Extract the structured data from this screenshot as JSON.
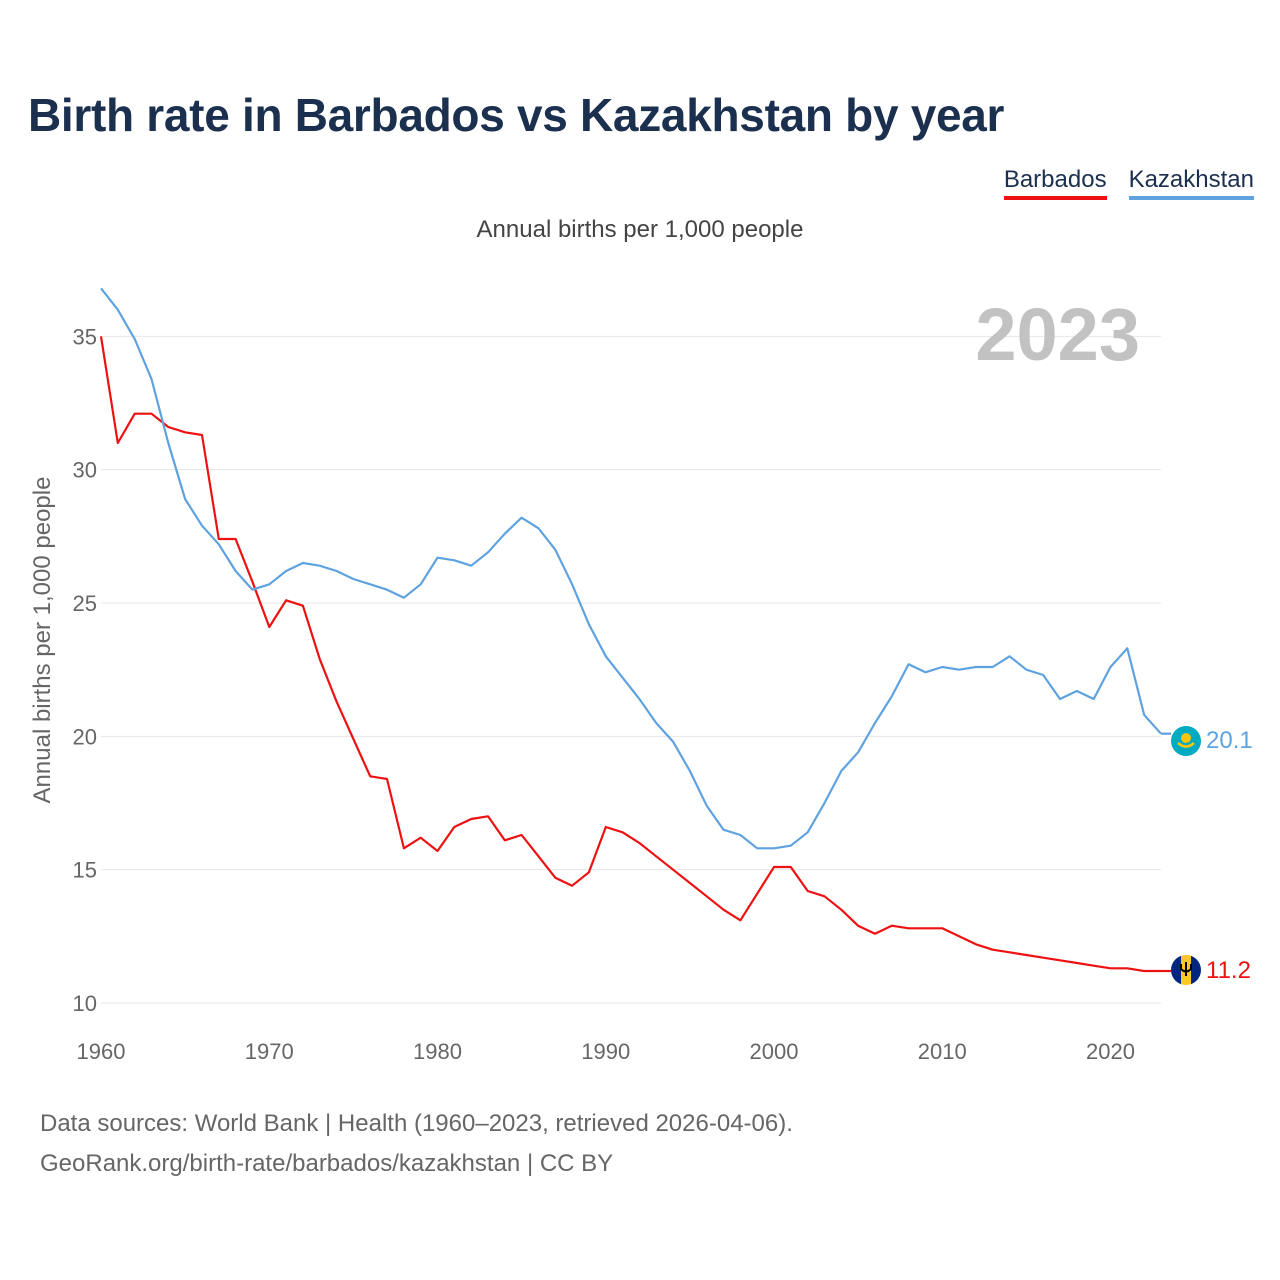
{
  "title": "Birth rate in Barbados vs Kazakhstan by year",
  "legend": {
    "barbados": "Barbados",
    "kazakhstan": "Kazakhstan"
  },
  "subtitle": "Annual births per 1,000 people",
  "footer": {
    "line1": "Data sources: World Bank | Health (1960–2023, retrieved 2026-04-06).",
    "line2": "GeoRank.org/birth-rate/barbados/kazakhstan | CC BY"
  },
  "colors": {
    "barbados": "#ee1111",
    "kazakhstan": "#5fa2e0",
    "grid": "#e6e6e6"
  },
  "chart_data": {
    "type": "line",
    "title": "Birth rate in Barbados vs Kazakhstan by year",
    "ylabel": "Annual births per 1,000 people",
    "xlabel": "",
    "year_label": "2023",
    "xlim": [
      1960,
      2023
    ],
    "ylim": [
      10,
      37
    ],
    "xticks": [
      1960,
      1970,
      1980,
      1990,
      2000,
      2010,
      2020
    ],
    "yticks": [
      10,
      15,
      20,
      25,
      30,
      35
    ],
    "grid": true,
    "legend": "top-right",
    "x": [
      1960,
      1961,
      1962,
      1963,
      1964,
      1965,
      1966,
      1967,
      1968,
      1969,
      1970,
      1971,
      1972,
      1973,
      1974,
      1975,
      1976,
      1977,
      1978,
      1979,
      1980,
      1981,
      1982,
      1983,
      1984,
      1985,
      1986,
      1987,
      1988,
      1989,
      1990,
      1991,
      1992,
      1993,
      1994,
      1995,
      1996,
      1997,
      1998,
      1999,
      2000,
      2001,
      2002,
      2003,
      2004,
      2005,
      2006,
      2007,
      2008,
      2009,
      2010,
      2011,
      2012,
      2013,
      2014,
      2015,
      2016,
      2017,
      2018,
      2019,
      2020,
      2021,
      2022,
      2023
    ],
    "series": [
      {
        "name": "Barbados",
        "end_label": "11.2",
        "values": [
          35.0,
          31.0,
          32.1,
          32.1,
          31.6,
          31.4,
          31.3,
          27.4,
          27.4,
          25.8,
          24.1,
          25.1,
          24.9,
          22.9,
          21.3,
          19.9,
          18.5,
          18.4,
          15.8,
          16.2,
          15.7,
          16.6,
          16.9,
          17.0,
          16.1,
          16.3,
          15.5,
          14.7,
          14.4,
          14.9,
          16.6,
          16.4,
          16.0,
          15.5,
          15.0,
          14.5,
          14.0,
          13.5,
          13.1,
          14.1,
          15.1,
          15.1,
          14.2,
          14.0,
          13.5,
          12.9,
          12.6,
          12.9,
          12.8,
          12.8,
          12.8,
          12.5,
          12.2,
          12.0,
          11.9,
          11.8,
          11.7,
          11.6,
          11.5,
          11.4,
          11.3,
          11.3,
          11.2,
          11.2
        ]
      },
      {
        "name": "Kazakhstan",
        "end_label": "20.1",
        "values": [
          36.8,
          36.0,
          34.9,
          33.4,
          31.0,
          28.9,
          27.9,
          27.2,
          26.2,
          25.5,
          25.7,
          26.2,
          26.5,
          26.4,
          26.2,
          25.9,
          25.7,
          25.5,
          25.2,
          25.7,
          26.7,
          26.6,
          26.4,
          26.9,
          27.6,
          28.2,
          27.8,
          27.0,
          25.7,
          24.2,
          23.0,
          22.2,
          21.4,
          20.5,
          19.8,
          18.7,
          17.4,
          16.5,
          16.3,
          15.8,
          15.8,
          15.9,
          16.4,
          17.5,
          18.7,
          19.4,
          20.5,
          21.5,
          22.7,
          22.4,
          22.6,
          22.5,
          22.6,
          22.6,
          23.0,
          22.5,
          22.3,
          21.4,
          21.7,
          21.4,
          22.6,
          23.3,
          20.8,
          20.1
        ]
      }
    ]
  }
}
